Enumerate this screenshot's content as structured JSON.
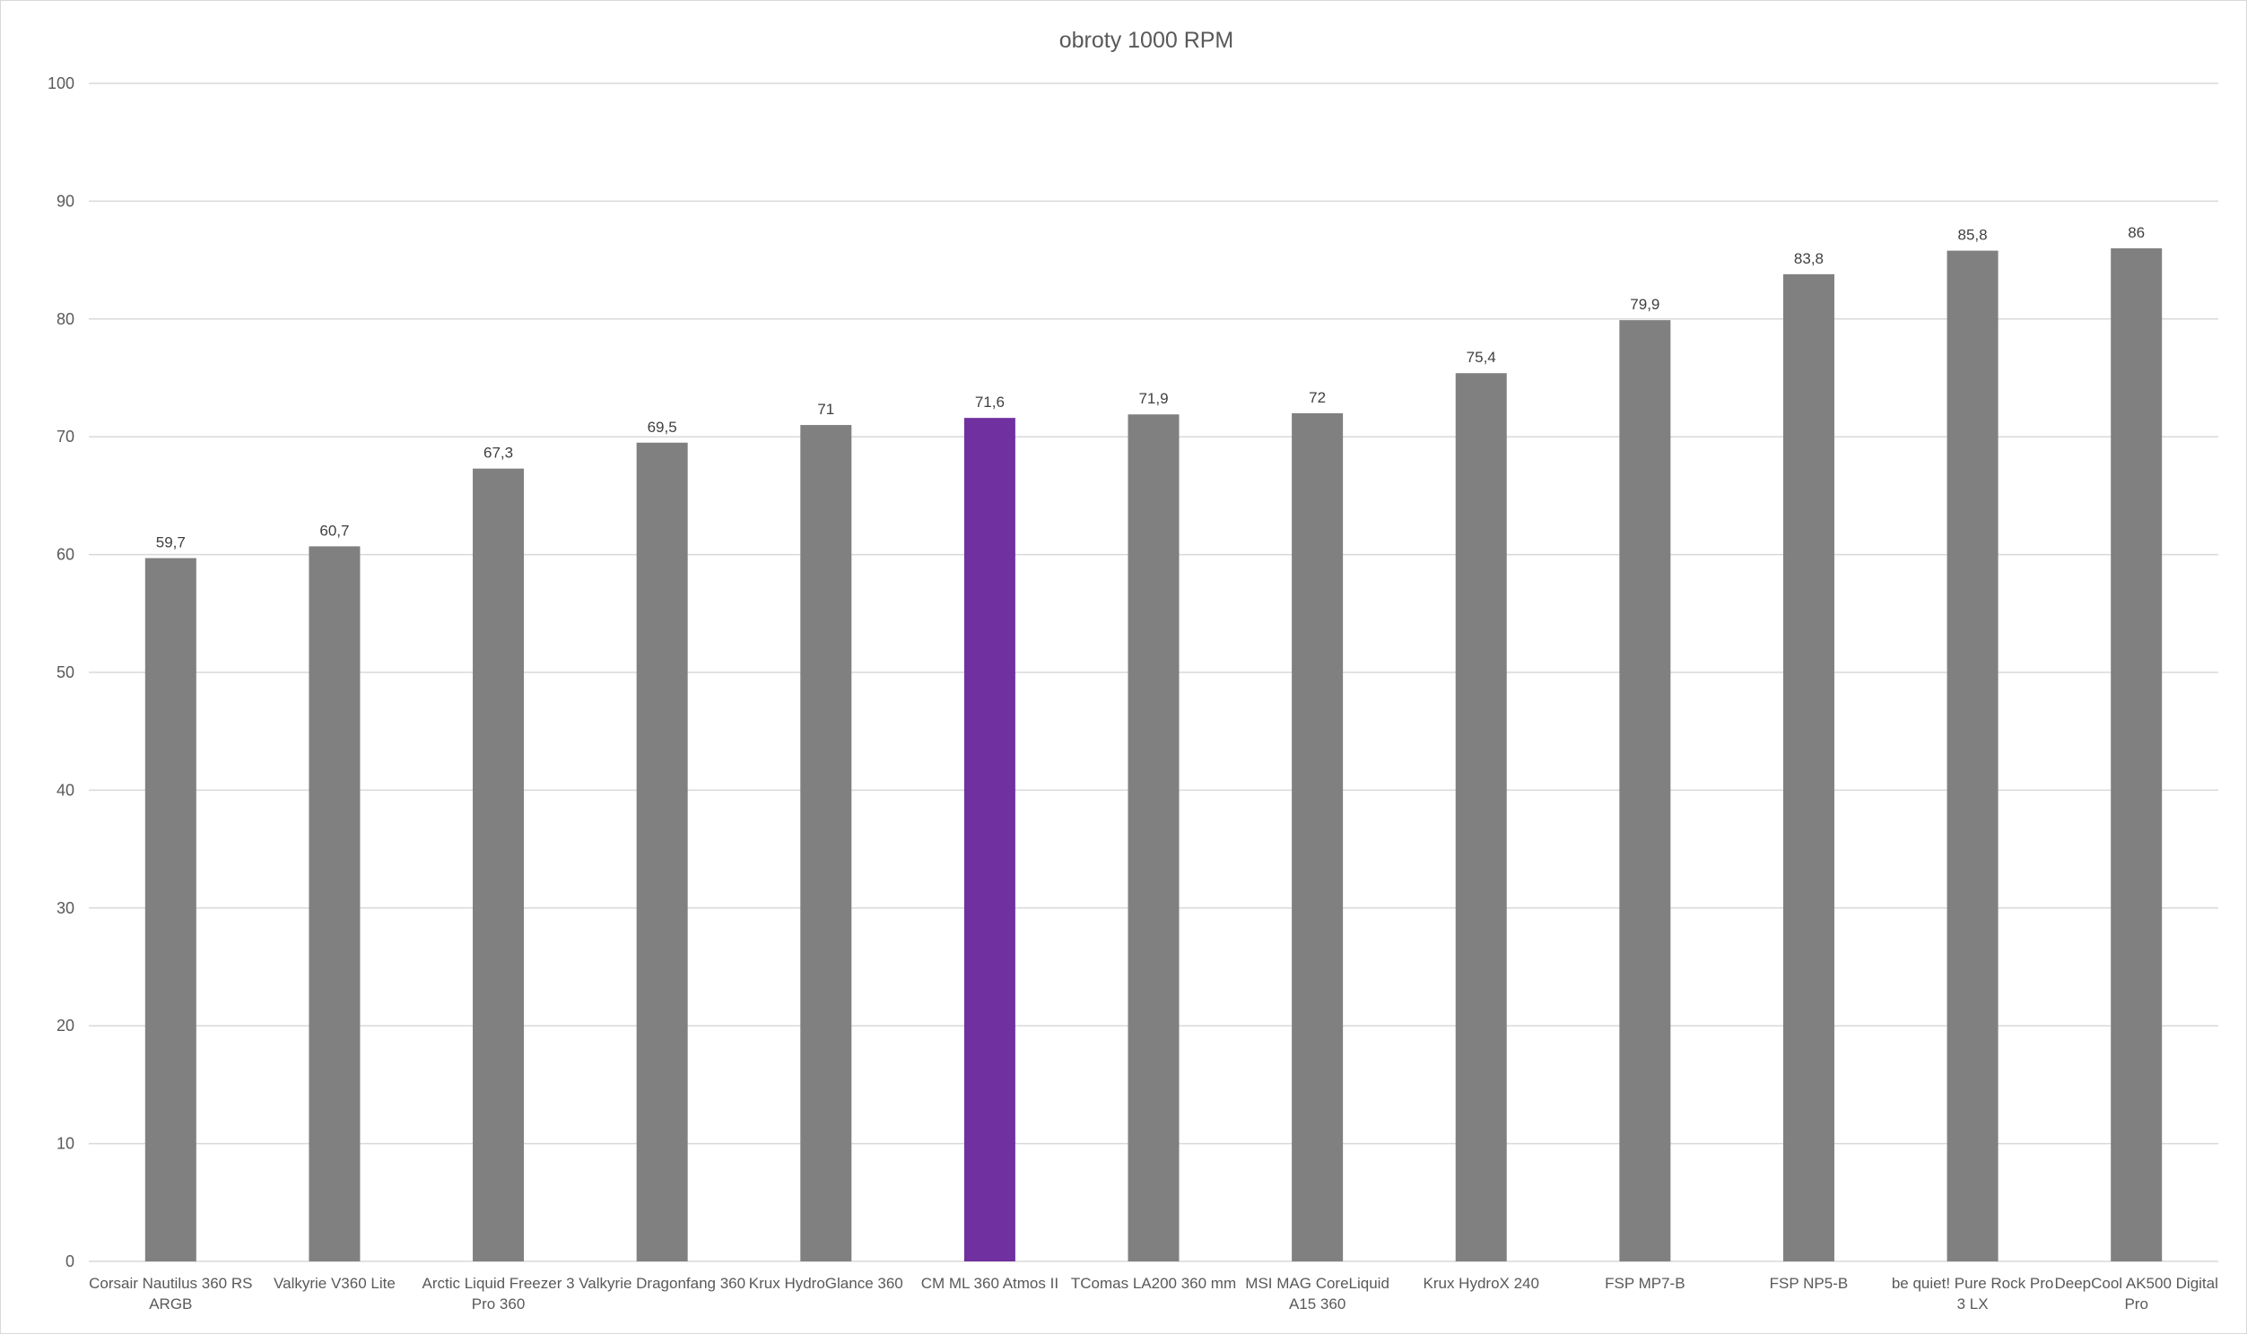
{
  "chart_data": {
    "type": "bar",
    "title": "obroty 1000 RPM",
    "xlabel": "",
    "ylabel": "",
    "ylim": [
      0,
      100
    ],
    "y_ticks": [
      "0",
      "10",
      "20",
      "30",
      "40",
      "50",
      "60",
      "70",
      "80",
      "90",
      "100"
    ],
    "grid": true,
    "legend": "none",
    "categories": [
      [
        "Corsair Nautilus 360 RS",
        "ARGB"
      ],
      [
        "Valkyrie V360 Lite"
      ],
      [
        "Arctic Liquid Freezer 3",
        "Pro 360"
      ],
      [
        "Valkyrie Dragonfang 360"
      ],
      [
        "Krux HydroGlance 360"
      ],
      [
        "CM ML 360 Atmos II"
      ],
      [
        "TComas LA200 360 mm"
      ],
      [
        "MSI MAG CoreLiquid",
        "A15 360"
      ],
      [
        "Krux HydroX  240"
      ],
      [
        "FSP MP7-B"
      ],
      [
        "FSP NP5-B"
      ],
      [
        "be quiet! Pure Rock Pro",
        "3 LX"
      ],
      [
        "DeepCool AK500 Digital",
        "Pro"
      ]
    ],
    "values": [
      59.7,
      60.7,
      67.3,
      69.5,
      71,
      71.6,
      71.9,
      72,
      75.4,
      79.9,
      83.8,
      85.8,
      86
    ],
    "data_labels": [
      "59,7",
      "60,7",
      "67,3",
      "69,5",
      "71",
      "71,6",
      "71,9",
      "72",
      "75,4",
      "79,9",
      "83,8",
      "85,8",
      "86"
    ],
    "colors": {
      "default_bar": "#808080",
      "highlight_bar": "#7030a0",
      "highlight_index": 5
    }
  }
}
